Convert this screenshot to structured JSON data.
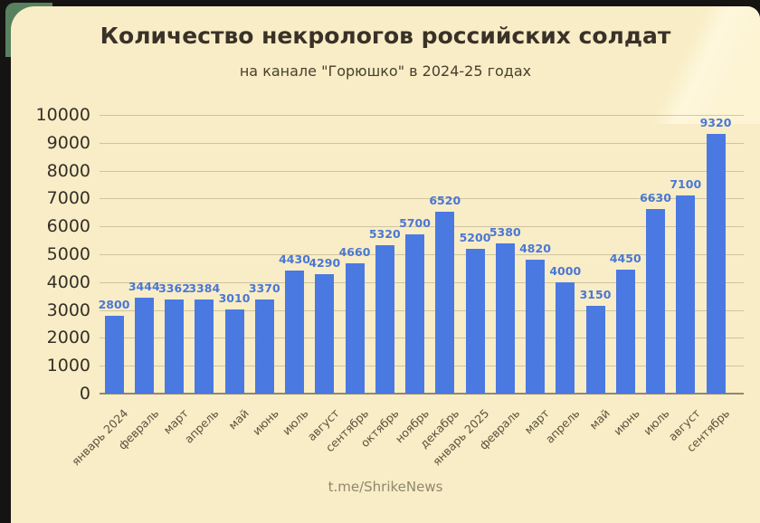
{
  "page": {
    "footer": "t.me/ShrikeNews"
  },
  "colors": {
    "bar": "#4b79e2",
    "value_label": "#4a77d6",
    "card_background": "#f8edc6",
    "outer_background": "#151413",
    "green_accent": "#57815f",
    "title_text": "#3a3128",
    "axis_text": "#352f28",
    "gridline": "#968c68"
  },
  "chart_data": {
    "type": "bar",
    "title": "Количество некрологов российских солдат",
    "subtitle": "на канале \"Горюшко\" в 2024-25 годах",
    "categories": [
      "январь 2024",
      "февраль",
      "март",
      "апрель",
      "май",
      "июнь",
      "июль",
      "август",
      "сентябрь",
      "октябрь",
      "ноябрь",
      "декабрь",
      "январь 2025",
      "февраль",
      "март",
      "апрель",
      "май",
      "июнь",
      "июль",
      "август",
      "сентябрь"
    ],
    "values": [
      2800,
      3444,
      3362,
      3384,
      3010,
      3370,
      4430,
      4290,
      4660,
      5320,
      5700,
      6520,
      5200,
      5380,
      4820,
      4000,
      3150,
      4450,
      6630,
      7100,
      9320
    ],
    "xlabel": "",
    "ylabel": "",
    "ylim": [
      0,
      10000
    ],
    "yticks": [
      0,
      1000,
      2000,
      3000,
      4000,
      5000,
      6000,
      7000,
      8000,
      9000,
      10000
    ],
    "grid": true,
    "legend": false,
    "value_labels": true,
    "xtick_rotation_deg": 45
  }
}
